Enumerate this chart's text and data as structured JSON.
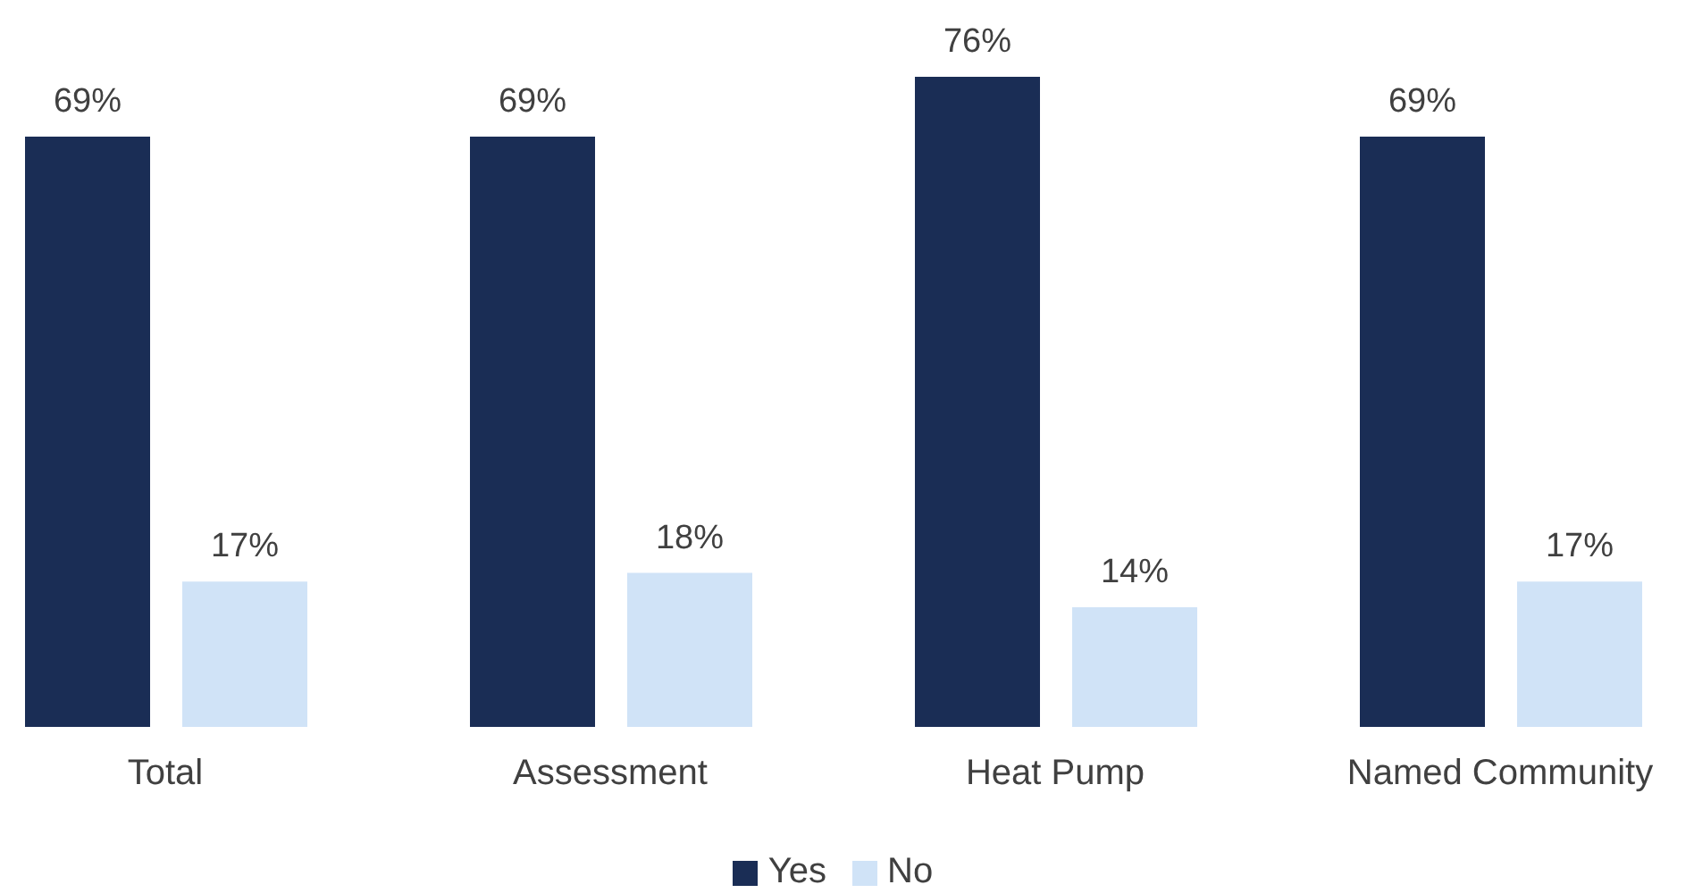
{
  "chart_data": {
    "type": "bar",
    "categories": [
      "Total",
      "Assessment",
      "Heat Pump",
      "Named Community"
    ],
    "series": [
      {
        "name": "Yes",
        "color": "#1a2d55",
        "values": [
          69,
          69,
          76,
          69
        ],
        "value_labels": [
          "69%",
          "69%",
          "76%",
          "69%"
        ]
      },
      {
        "name": "No",
        "color": "#d0e3f7",
        "values": [
          17,
          18,
          14,
          17
        ],
        "value_labels": [
          "17%",
          "18%",
          "14%",
          "17%"
        ]
      }
    ],
    "legend": "bottom",
    "grid": false
  }
}
